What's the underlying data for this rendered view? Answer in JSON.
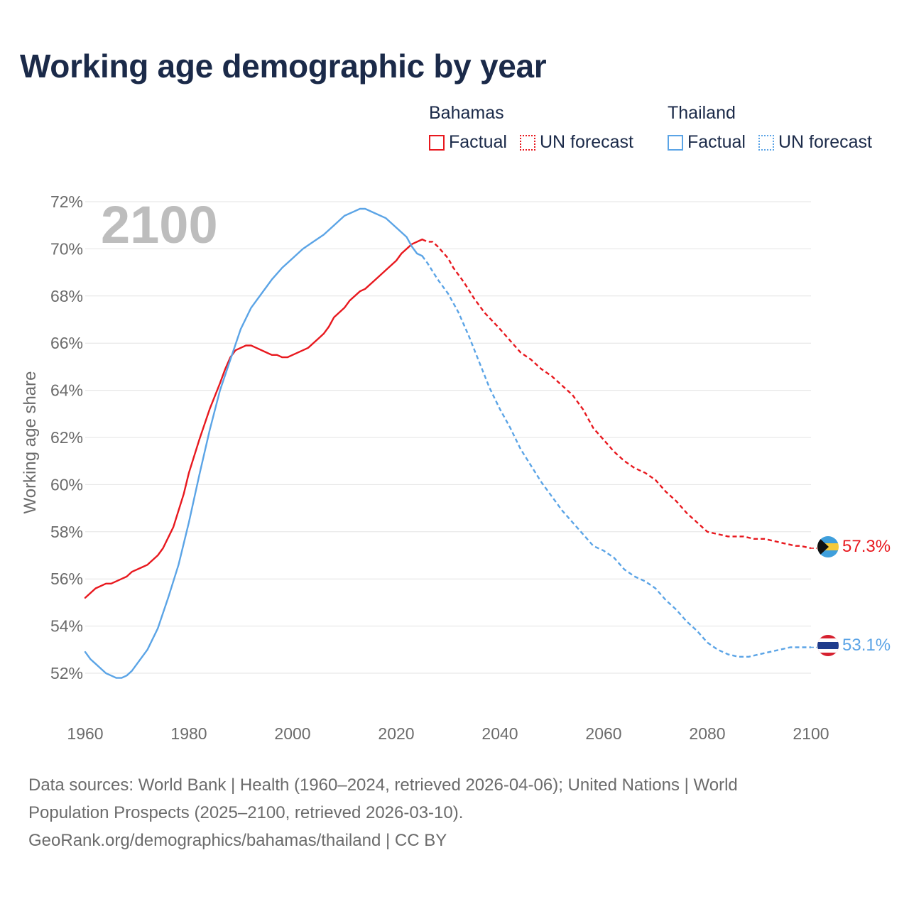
{
  "title": "Working age demographic by year",
  "year_label": "2100",
  "legend": {
    "groups": [
      {
        "name": "Bahamas",
        "color": "#e8181e",
        "factual": "Factual",
        "forecast": "UN forecast"
      },
      {
        "name": "Thailand",
        "color": "#5ba4e6",
        "factual": "Factual",
        "forecast": "UN forecast"
      }
    ]
  },
  "footer": {
    "line1": "Data sources: World Bank | Health (1960–2024, retrieved 2026-04-06); United Nations | World",
    "line2": "Population Prospects (2025–2100, retrieved 2026-03-10).",
    "line3": "GeoRank.org/demographics/bahamas/thailand | CC BY"
  },
  "chart_data": {
    "type": "line",
    "title": "Working age demographic by year",
    "xlabel": "",
    "ylabel": "Working age share",
    "xlim": [
      1960,
      2100
    ],
    "ylim": [
      51,
      72
    ],
    "x_ticks": [
      1960,
      1980,
      2000,
      2020,
      2040,
      2060,
      2080,
      2100
    ],
    "x_tick_labels": [
      "1960",
      "1980",
      "2000",
      "2020",
      "2040",
      "2060",
      "2080",
      "2100"
    ],
    "y_ticks": [
      52,
      54,
      56,
      58,
      60,
      62,
      64,
      66,
      68,
      70,
      72
    ],
    "y_tick_labels": [
      "52%",
      "54%",
      "56%",
      "58%",
      "60%",
      "62%",
      "64%",
      "66%",
      "68%",
      "70%",
      "72%"
    ],
    "grid": true,
    "factual_end_year": 2025,
    "series": [
      {
        "name": "Bahamas",
        "color": "#e8181e",
        "flag": "bahamas-flag",
        "end_label": "57.3%",
        "points": [
          [
            1960,
            55.2
          ],
          [
            1962,
            55.6
          ],
          [
            1964,
            55.8
          ],
          [
            1965,
            55.8
          ],
          [
            1967,
            56.0
          ],
          [
            1968,
            56.1
          ],
          [
            1969,
            56.3
          ],
          [
            1971,
            56.5
          ],
          [
            1972,
            56.6
          ],
          [
            1974,
            57.0
          ],
          [
            1975,
            57.3
          ],
          [
            1977,
            58.2
          ],
          [
            1979,
            59.6
          ],
          [
            1980,
            60.5
          ],
          [
            1982,
            61.9
          ],
          [
            1984,
            63.2
          ],
          [
            1986,
            64.3
          ],
          [
            1987,
            64.9
          ],
          [
            1988,
            65.4
          ],
          [
            1989,
            65.7
          ],
          [
            1990,
            65.8
          ],
          [
            1991,
            65.9
          ],
          [
            1992,
            65.9
          ],
          [
            1993,
            65.8
          ],
          [
            1995,
            65.6
          ],
          [
            1996,
            65.5
          ],
          [
            1997,
            65.5
          ],
          [
            1998,
            65.4
          ],
          [
            1999,
            65.4
          ],
          [
            2000,
            65.5
          ],
          [
            2002,
            65.7
          ],
          [
            2003,
            65.8
          ],
          [
            2005,
            66.2
          ],
          [
            2006,
            66.4
          ],
          [
            2007,
            66.7
          ],
          [
            2008,
            67.1
          ],
          [
            2010,
            67.5
          ],
          [
            2011,
            67.8
          ],
          [
            2013,
            68.2
          ],
          [
            2014,
            68.3
          ],
          [
            2016,
            68.7
          ],
          [
            2018,
            69.1
          ],
          [
            2020,
            69.5
          ],
          [
            2021,
            69.8
          ],
          [
            2023,
            70.2
          ],
          [
            2025,
            70.4
          ],
          [
            2026,
            70.3
          ],
          [
            2027,
            70.3
          ],
          [
            2028,
            70.1
          ],
          [
            2030,
            69.6
          ],
          [
            2031,
            69.2
          ],
          [
            2033,
            68.6
          ],
          [
            2035,
            67.9
          ],
          [
            2037,
            67.3
          ],
          [
            2040,
            66.6
          ],
          [
            2042,
            66.1
          ],
          [
            2044,
            65.6
          ],
          [
            2046,
            65.3
          ],
          [
            2048,
            64.9
          ],
          [
            2050,
            64.6
          ],
          [
            2052,
            64.2
          ],
          [
            2054,
            63.8
          ],
          [
            2056,
            63.2
          ],
          [
            2058,
            62.4
          ],
          [
            2060,
            61.9
          ],
          [
            2062,
            61.4
          ],
          [
            2064,
            61.0
          ],
          [
            2066,
            60.7
          ],
          [
            2068,
            60.5
          ],
          [
            2070,
            60.2
          ],
          [
            2072,
            59.7
          ],
          [
            2074,
            59.3
          ],
          [
            2076,
            58.8
          ],
          [
            2078,
            58.4
          ],
          [
            2080,
            58.0
          ],
          [
            2082,
            57.9
          ],
          [
            2084,
            57.8
          ],
          [
            2087,
            57.8
          ],
          [
            2089,
            57.7
          ],
          [
            2091,
            57.7
          ],
          [
            2093,
            57.6
          ],
          [
            2095,
            57.5
          ],
          [
            2097,
            57.4
          ],
          [
            2098,
            57.4
          ],
          [
            2100,
            57.3
          ]
        ]
      },
      {
        "name": "Thailand",
        "color": "#5ba4e6",
        "flag": "thailand-flag",
        "end_label": "53.1%",
        "points": [
          [
            1960,
            52.9
          ],
          [
            1961,
            52.6
          ],
          [
            1962,
            52.4
          ],
          [
            1963,
            52.2
          ],
          [
            1964,
            52.0
          ],
          [
            1965,
            51.9
          ],
          [
            1966,
            51.8
          ],
          [
            1967,
            51.8
          ],
          [
            1968,
            51.9
          ],
          [
            1969,
            52.1
          ],
          [
            1970,
            52.4
          ],
          [
            1972,
            53.0
          ],
          [
            1974,
            53.9
          ],
          [
            1976,
            55.2
          ],
          [
            1978,
            56.6
          ],
          [
            1980,
            58.4
          ],
          [
            1982,
            60.4
          ],
          [
            1984,
            62.3
          ],
          [
            1986,
            64.0
          ],
          [
            1988,
            65.3
          ],
          [
            1990,
            66.6
          ],
          [
            1992,
            67.5
          ],
          [
            1994,
            68.1
          ],
          [
            1996,
            68.7
          ],
          [
            1998,
            69.2
          ],
          [
            2000,
            69.6
          ],
          [
            2002,
            70.0
          ],
          [
            2004,
            70.3
          ],
          [
            2006,
            70.6
          ],
          [
            2008,
            71.0
          ],
          [
            2010,
            71.4
          ],
          [
            2012,
            71.6
          ],
          [
            2013,
            71.7
          ],
          [
            2014,
            71.7
          ],
          [
            2016,
            71.5
          ],
          [
            2018,
            71.3
          ],
          [
            2020,
            70.9
          ],
          [
            2022,
            70.5
          ],
          [
            2023,
            70.1
          ],
          [
            2024,
            69.8
          ],
          [
            2025,
            69.7
          ],
          [
            2026,
            69.4
          ],
          [
            2028,
            68.7
          ],
          [
            2030,
            68.1
          ],
          [
            2032,
            67.3
          ],
          [
            2034,
            66.3
          ],
          [
            2036,
            65.2
          ],
          [
            2038,
            64.1
          ],
          [
            2040,
            63.2
          ],
          [
            2042,
            62.4
          ],
          [
            2044,
            61.5
          ],
          [
            2046,
            60.8
          ],
          [
            2048,
            60.1
          ],
          [
            2050,
            59.5
          ],
          [
            2052,
            58.9
          ],
          [
            2054,
            58.4
          ],
          [
            2056,
            57.9
          ],
          [
            2058,
            57.4
          ],
          [
            2060,
            57.2
          ],
          [
            2062,
            56.9
          ],
          [
            2064,
            56.4
          ],
          [
            2066,
            56.1
          ],
          [
            2068,
            55.9
          ],
          [
            2070,
            55.6
          ],
          [
            2072,
            55.1
          ],
          [
            2074,
            54.7
          ],
          [
            2076,
            54.2
          ],
          [
            2078,
            53.8
          ],
          [
            2080,
            53.3
          ],
          [
            2082,
            53.0
          ],
          [
            2084,
            52.8
          ],
          [
            2086,
            52.7
          ],
          [
            2088,
            52.7
          ],
          [
            2090,
            52.8
          ],
          [
            2092,
            52.9
          ],
          [
            2094,
            53.0
          ],
          [
            2096,
            53.1
          ],
          [
            2098,
            53.1
          ],
          [
            2100,
            53.1
          ]
        ]
      }
    ]
  }
}
